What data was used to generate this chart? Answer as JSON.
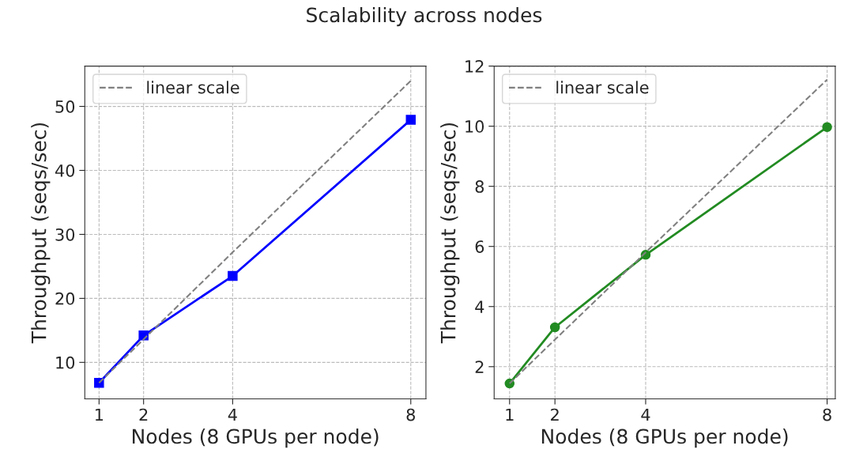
{
  "chart_data": [
    {
      "type": "line",
      "title": "Scalability across nodes",
      "xlabel": "Nodes (8 GPUs per node)",
      "ylabel": "Throughput (seqs/sec)",
      "x": [
        1,
        2,
        4,
        8
      ],
      "series": [
        {
          "color": "#0000ff",
          "values": [
            6.8,
            14.2,
            23.5,
            47.9
          ],
          "marker": "square",
          "line_style": "solid"
        },
        {
          "name": "linear scale",
          "color": "#808080",
          "values": [
            6.8,
            13.6,
            27.2,
            54
          ],
          "marker": "none",
          "line_style": "dashed"
        }
      ],
      "xlim": [
        0.68,
        8.34
      ],
      "xticks": [
        1,
        2,
        4,
        8
      ],
      "ylim": [
        4.3,
        56.3
      ],
      "yticks": [
        10,
        20,
        30,
        40,
        50
      ],
      "grid": true,
      "legend": "top left"
    },
    {
      "type": "line",
      "xlabel": "Nodes (8 GPUs per node)",
      "ylabel": "Throughput (seqs/sec)",
      "x": [
        1,
        2,
        4,
        8
      ],
      "series": [
        {
          "color": "#228b22",
          "values": [
            1.44,
            3.31,
            5.72,
            9.97
          ],
          "marker": "circle",
          "line_style": "solid"
        },
        {
          "name": "linear scale",
          "color": "#808080",
          "values": [
            1.44,
            2.9,
            5.8,
            11.55
          ],
          "marker": "none",
          "line_style": "dashed"
        }
      ],
      "xlim": [
        0.66,
        8.18
      ],
      "xticks": [
        1,
        2,
        4,
        8
      ],
      "ylim": [
        0.93,
        12
      ],
      "yticks": [
        2,
        4,
        6,
        8,
        10,
        12
      ],
      "grid": true,
      "legend": "top left"
    }
  ]
}
